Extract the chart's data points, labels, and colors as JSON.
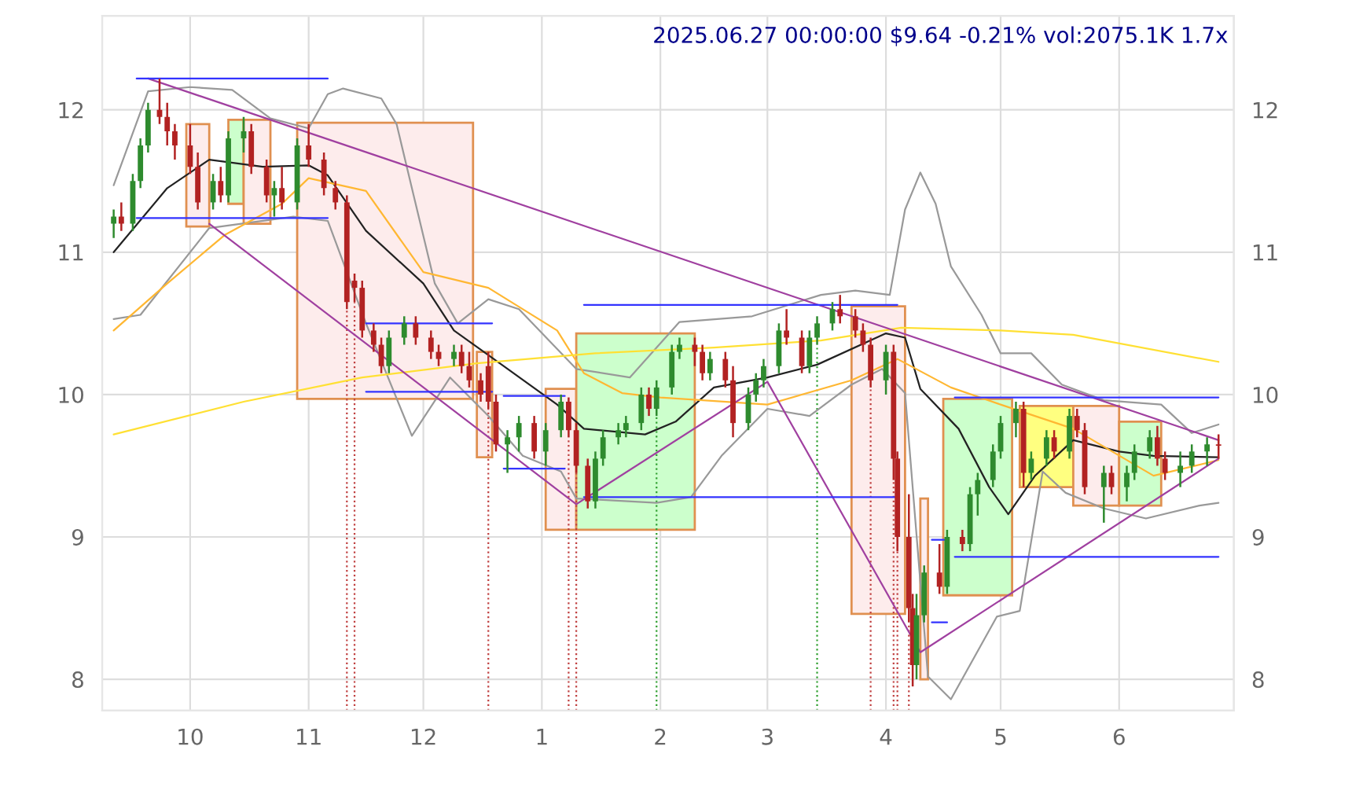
{
  "chart_data": {
    "type": "candlestick",
    "title": "2025.06.27 00:00:00 $9.64 -0.21% vol:2075.1K 1.7x",
    "x": [
      "2024-09-11",
      "2024-09-13",
      "2024-09-16",
      "2024-09-18",
      "2024-09-20",
      "2024-09-23",
      "2024-09-25",
      "2024-09-27",
      "2024-10-01",
      "2024-10-03",
      "2024-10-07",
      "2024-10-09",
      "2024-10-11",
      "2024-10-15",
      "2024-10-17",
      "2024-10-21",
      "2024-10-23",
      "2024-10-25",
      "2024-10-29",
      "2024-11-01",
      "2024-11-05",
      "2024-11-08",
      "2024-11-11",
      "2024-11-13",
      "2024-11-15",
      "2024-11-18",
      "2024-11-20",
      "2024-11-22",
      "2024-11-26",
      "2024-11-29",
      "2024-12-03",
      "2024-12-05",
      "2024-12-09",
      "2024-12-11",
      "2024-12-13",
      "2024-12-16",
      "2024-12-18",
      "2024-12-20",
      "2024-12-23",
      "2024-12-26",
      "2024-12-30",
      "2025-01-02",
      "2025-01-06",
      "2025-01-08",
      "2025-01-10",
      "2025-01-13",
      "2025-01-15",
      "2025-01-17",
      "2025-01-21",
      "2025-01-23",
      "2025-01-27",
      "2025-01-29",
      "2025-01-31",
      "2025-02-04",
      "2025-02-06",
      "2025-02-10",
      "2025-02-12",
      "2025-02-14",
      "2025-02-18",
      "2025-02-20",
      "2025-02-24",
      "2025-02-26",
      "2025-02-28",
      "2025-03-04",
      "2025-03-06",
      "2025-03-10",
      "2025-03-12",
      "2025-03-14",
      "2025-03-18",
      "2025-03-20",
      "2025-03-24",
      "2025-03-26",
      "2025-03-28",
      "2025-04-01",
      "2025-04-03",
      "2025-04-04",
      "2025-04-07",
      "2025-04-08",
      "2025-04-09",
      "2025-04-11",
      "2025-04-15",
      "2025-04-17",
      "2025-04-21",
      "2025-04-23",
      "2025-04-25",
      "2025-04-29",
      "2025-05-01",
      "2025-05-05",
      "2025-05-07",
      "2025-05-09",
      "2025-05-13",
      "2025-05-15",
      "2025-05-19",
      "2025-05-21",
      "2025-05-23",
      "2025-05-28",
      "2025-05-30",
      "2025-06-03",
      "2025-06-05",
      "2025-06-09",
      "2025-06-11",
      "2025-06-13",
      "2025-06-17",
      "2025-06-20",
      "2025-06-24",
      "2025-06-27"
    ],
    "ohlc": [
      [
        11.2,
        11.3,
        11.1,
        11.25
      ],
      [
        11.25,
        11.35,
        11.15,
        11.2
      ],
      [
        11.2,
        11.55,
        11.15,
        11.5
      ],
      [
        11.5,
        11.8,
        11.45,
        11.75
      ],
      [
        11.75,
        12.05,
        11.7,
        12.0
      ],
      [
        12.0,
        12.22,
        11.9,
        11.95
      ],
      [
        11.95,
        12.05,
        11.75,
        11.85
      ],
      [
        11.85,
        11.9,
        11.65,
        11.75
      ],
      [
        11.75,
        11.9,
        11.55,
        11.6
      ],
      [
        11.6,
        11.7,
        11.3,
        11.35
      ],
      [
        11.35,
        11.55,
        11.3,
        11.5
      ],
      [
        11.5,
        11.6,
        11.35,
        11.4
      ],
      [
        11.4,
        11.85,
        11.35,
        11.8
      ],
      [
        11.8,
        11.95,
        11.7,
        11.85
      ],
      [
        11.85,
        11.9,
        11.55,
        11.6
      ],
      [
        11.6,
        11.65,
        11.35,
        11.4
      ],
      [
        11.4,
        11.5,
        11.25,
        11.45
      ],
      [
        11.45,
        11.6,
        11.3,
        11.35
      ],
      [
        11.35,
        11.8,
        11.3,
        11.75
      ],
      [
        11.75,
        11.9,
        11.6,
        11.65
      ],
      [
        11.65,
        11.7,
        11.4,
        11.45
      ],
      [
        11.45,
        11.5,
        11.3,
        11.35
      ],
      [
        11.35,
        11.4,
        10.6,
        10.65
      ],
      [
        10.8,
        10.85,
        10.65,
        10.75
      ],
      [
        10.75,
        10.8,
        10.4,
        10.45
      ],
      [
        10.45,
        10.5,
        10.3,
        10.35
      ],
      [
        10.35,
        10.4,
        10.15,
        10.2
      ],
      [
        10.2,
        10.45,
        10.15,
        10.4
      ],
      [
        10.4,
        10.55,
        10.35,
        10.5
      ],
      [
        10.5,
        10.55,
        10.35,
        10.4
      ],
      [
        10.4,
        10.45,
        10.25,
        10.3
      ],
      [
        10.3,
        10.35,
        10.2,
        10.25
      ],
      [
        10.25,
        10.35,
        10.2,
        10.3
      ],
      [
        10.3,
        10.35,
        10.15,
        10.2
      ],
      [
        10.2,
        10.3,
        10.05,
        10.1
      ],
      [
        10.1,
        10.15,
        9.95,
        10.0
      ],
      [
        10.2,
        10.3,
        9.9,
        9.95
      ],
      [
        9.95,
        10.0,
        9.6,
        9.65
      ],
      [
        9.65,
        9.75,
        9.45,
        9.7
      ],
      [
        9.7,
        9.85,
        9.6,
        9.8
      ],
      [
        9.8,
        9.85,
        9.55,
        9.6
      ],
      [
        9.6,
        9.8,
        9.5,
        9.75
      ],
      [
        9.75,
        10.0,
        9.7,
        9.95
      ],
      [
        9.95,
        9.98,
        9.7,
        9.75
      ],
      [
        9.75,
        9.8,
        9.45,
        9.5
      ],
      [
        9.5,
        9.55,
        9.2,
        9.25
      ],
      [
        9.25,
        9.6,
        9.2,
        9.55
      ],
      [
        9.55,
        9.75,
        9.5,
        9.7
      ],
      [
        9.7,
        9.8,
        9.65,
        9.75
      ],
      [
        9.75,
        9.85,
        9.7,
        9.8
      ],
      [
        9.8,
        10.05,
        9.75,
        10.0
      ],
      [
        10.0,
        10.05,
        9.85,
        9.9
      ],
      [
        9.9,
        10.1,
        9.85,
        10.05
      ],
      [
        10.05,
        10.35,
        10.0,
        10.3
      ],
      [
        10.3,
        10.4,
        10.25,
        10.35
      ],
      [
        10.35,
        10.4,
        10.2,
        10.3
      ],
      [
        10.3,
        10.35,
        10.1,
        10.15
      ],
      [
        10.15,
        10.3,
        10.1,
        10.25
      ],
      [
        10.25,
        10.3,
        10.05,
        10.1
      ],
      [
        10.1,
        10.2,
        9.7,
        9.8
      ],
      [
        9.8,
        10.05,
        9.75,
        10.0
      ],
      [
        10.0,
        10.15,
        9.95,
        10.1
      ],
      [
        10.1,
        10.25,
        10.05,
        10.2
      ],
      [
        10.2,
        10.5,
        10.15,
        10.45
      ],
      [
        10.45,
        10.6,
        10.35,
        10.4
      ],
      [
        10.4,
        10.45,
        10.15,
        10.2
      ],
      [
        10.2,
        10.45,
        10.15,
        10.4
      ],
      [
        10.4,
        10.55,
        10.35,
        10.5
      ],
      [
        10.5,
        10.65,
        10.45,
        10.6
      ],
      [
        10.6,
        10.7,
        10.5,
        10.55
      ],
      [
        10.55,
        10.6,
        10.4,
        10.45
      ],
      [
        10.45,
        10.5,
        10.3,
        10.35
      ],
      [
        10.35,
        10.4,
        10.05,
        10.1
      ],
      [
        10.1,
        10.35,
        10.0,
        10.3
      ],
      [
        10.3,
        10.35,
        9.4,
        9.55
      ],
      [
        9.55,
        9.6,
        8.9,
        9.0
      ],
      [
        9.0,
        9.3,
        8.4,
        8.5
      ],
      [
        8.5,
        8.6,
        7.95,
        8.1
      ],
      [
        8.1,
        8.6,
        8.0,
        8.45
      ],
      [
        8.45,
        8.8,
        8.4,
        8.75
      ],
      [
        8.75,
        8.95,
        8.6,
        8.65
      ],
      [
        8.65,
        9.05,
        8.6,
        9.0
      ],
      [
        9.0,
        9.05,
        8.9,
        8.95
      ],
      [
        8.95,
        9.35,
        8.9,
        9.3
      ],
      [
        9.3,
        9.45,
        9.15,
        9.4
      ],
      [
        9.4,
        9.65,
        9.35,
        9.6
      ],
      [
        9.6,
        9.85,
        9.55,
        9.8
      ],
      [
        9.8,
        9.95,
        9.7,
        9.9
      ],
      [
        9.9,
        9.95,
        9.35,
        9.45
      ],
      [
        9.45,
        9.6,
        9.4,
        9.55
      ],
      [
        9.55,
        9.75,
        9.5,
        9.7
      ],
      [
        9.7,
        9.75,
        9.55,
        9.6
      ],
      [
        9.6,
        9.9,
        9.55,
        9.85
      ],
      [
        9.85,
        9.9,
        9.7,
        9.75
      ],
      [
        9.75,
        9.8,
        9.3,
        9.35
      ],
      [
        9.35,
        9.5,
        9.1,
        9.45
      ],
      [
        9.45,
        9.5,
        9.3,
        9.35
      ],
      [
        9.35,
        9.5,
        9.25,
        9.45
      ],
      [
        9.45,
        9.65,
        9.4,
        9.6
      ],
      [
        9.6,
        9.75,
        9.55,
        9.7
      ],
      [
        9.7,
        9.78,
        9.5,
        9.55
      ],
      [
        9.55,
        9.6,
        9.4,
        9.45
      ],
      [
        9.45,
        9.6,
        9.35,
        9.5
      ],
      [
        9.5,
        9.65,
        9.45,
        9.6
      ],
      [
        9.6,
        9.7,
        9.5,
        9.65
      ],
      [
        9.65,
        9.72,
        9.55,
        9.64
      ]
    ],
    "series": [
      {
        "type": "area",
        "color": "#fdecec",
        "x": [
          "2024-09-30",
          "2024-10-06",
          "2024-10-06",
          "2024-09-30"
        ],
        "values": [
          11.9,
          11.9,
          11.18,
          11.18
        ]
      },
      {
        "type": "area",
        "color": "#ccffcc",
        "x": [
          "2024-10-11",
          "2024-10-15",
          "2024-10-15",
          "2024-10-11"
        ],
        "values": [
          11.93,
          11.93,
          11.34,
          11.34
        ]
      },
      {
        "type": "area",
        "color": "#fdecec",
        "x": [
          "2024-10-15",
          "2024-10-22",
          "2024-10-22",
          "2024-10-15"
        ],
        "values": [
          11.93,
          11.93,
          11.2,
          11.2
        ]
      },
      {
        "type": "area",
        "color": "#fdecec",
        "x": [
          "2024-10-29",
          "2024-12-14",
          "2024-12-14",
          "2024-10-29"
        ],
        "values": [
          11.91,
          11.91,
          9.97,
          9.97
        ]
      },
      {
        "type": "area",
        "color": "#fdecec",
        "x": [
          "2024-12-15",
          "2024-12-19",
          "2024-12-19",
          "2024-12-15"
        ],
        "values": [
          10.3,
          10.3,
          9.56,
          9.56
        ]
      },
      {
        "type": "area",
        "color": "#fdecec",
        "x": [
          "2025-01-02",
          "2025-01-10",
          "2025-01-10",
          "2025-01-02"
        ],
        "values": [
          10.04,
          10.04,
          9.05,
          9.05
        ]
      },
      {
        "type": "area",
        "color": "#ccffcc",
        "x": [
          "2025-01-10",
          "2025-02-10",
          "2025-02-10",
          "2025-01-10"
        ],
        "values": [
          10.43,
          10.43,
          9.05,
          9.05
        ]
      },
      {
        "type": "area",
        "color": "#fdecec",
        "x": [
          "2025-03-23",
          "2025-04-06",
          "2025-04-06",
          "2025-03-23"
        ],
        "values": [
          10.62,
          10.62,
          8.46,
          8.46
        ]
      },
      {
        "type": "area",
        "color": "#fdecec",
        "x": [
          "2025-04-10",
          "2025-04-12",
          "2025-04-12",
          "2025-04-10"
        ],
        "values": [
          9.27,
          9.27,
          8.0,
          8.0
        ]
      },
      {
        "type": "area",
        "color": "#ccffcc",
        "x": [
          "2025-04-16",
          "2025-05-04",
          "2025-05-04",
          "2025-04-16"
        ],
        "values": [
          9.97,
          9.97,
          8.59,
          8.59
        ]
      },
      {
        "type": "area",
        "color": "#ffff80",
        "x": [
          "2025-05-06",
          "2025-05-20",
          "2025-05-20",
          "2025-05-06"
        ],
        "values": [
          9.92,
          9.92,
          9.35,
          9.35
        ]
      },
      {
        "type": "area",
        "color": "#fdecec",
        "x": [
          "2025-05-20",
          "2025-06-01",
          "2025-06-01",
          "2025-05-20"
        ],
        "values": [
          9.92,
          9.92,
          9.22,
          9.22
        ]
      },
      {
        "type": "area",
        "color": "#ccffcc",
        "x": [
          "2025-06-01",
          "2025-06-12",
          "2025-06-12",
          "2025-06-01"
        ],
        "values": [
          9.81,
          9.81,
          9.22,
          9.22
        ]
      },
      {
        "type": "line",
        "color": "#999999",
        "x": [
          "2024-09-11",
          "2024-09-20",
          "2024-10-01",
          "2024-10-12",
          "2024-10-22",
          "2024-11-01",
          "2024-11-06",
          "2024-11-10",
          "2024-11-20",
          "2024-11-24",
          "2024-11-28",
          "2024-12-04",
          "2024-12-10",
          "2024-12-18",
          "2024-12-26",
          "2025-01-10",
          "2025-01-24",
          "2025-02-06",
          "2025-02-25",
          "2025-03-15",
          "2025-03-24",
          "2025-04-02",
          "2025-04-06",
          "2025-04-10",
          "2025-04-14",
          "2025-04-18",
          "2025-04-26",
          "2025-05-01",
          "2025-05-09",
          "2025-05-17",
          "2025-05-28",
          "2025-06-12",
          "2025-06-20",
          "2025-06-27"
        ],
        "values": [
          11.47,
          12.13,
          12.16,
          12.14,
          11.94,
          11.87,
          12.11,
          12.15,
          12.08,
          11.9,
          11.45,
          10.78,
          10.5,
          10.67,
          10.6,
          10.18,
          10.12,
          10.51,
          10.55,
          10.7,
          10.73,
          10.7,
          11.3,
          11.56,
          11.34,
          10.9,
          10.56,
          10.29,
          10.29,
          10.07,
          9.96,
          9.93,
          9.73,
          9.79
        ]
      },
      {
        "type": "line",
        "color": "#999999",
        "x": [
          "2024-09-11",
          "2024-09-18",
          "2024-10-06",
          "2024-10-28",
          "2024-11-06",
          "2024-11-16",
          "2024-11-28",
          "2024-12-08",
          "2024-12-18",
          "2024-12-27",
          "2025-01-06",
          "2025-01-10",
          "2025-01-31",
          "2025-02-09",
          "2025-02-17",
          "2025-03-01",
          "2025-03-12",
          "2025-03-23",
          "2025-03-31",
          "2025-04-06",
          "2025-04-12",
          "2025-04-18",
          "2025-04-30",
          "2025-05-06",
          "2025-05-12",
          "2025-05-18",
          "2025-05-28",
          "2025-06-08",
          "2025-06-22",
          "2025-06-27"
        ],
        "values": [
          10.53,
          10.56,
          11.17,
          11.25,
          11.22,
          10.5,
          9.71,
          10.12,
          9.85,
          9.57,
          9.46,
          9.27,
          9.24,
          9.28,
          9.57,
          9.9,
          9.85,
          10.07,
          10.18,
          10.01,
          8.02,
          7.86,
          8.44,
          8.48,
          9.46,
          9.31,
          9.2,
          9.13,
          9.22,
          9.24
        ]
      },
      {
        "type": "line",
        "color": "#222222",
        "x": [
          "2024-09-11",
          "2024-09-25",
          "2024-10-06",
          "2024-10-20",
          "2024-11-01",
          "2024-11-06",
          "2024-11-16",
          "2024-12-01",
          "2024-12-09",
          "2024-12-22",
          "2025-01-05",
          "2025-01-12",
          "2025-01-28",
          "2025-02-05",
          "2025-02-15",
          "2025-03-01",
          "2025-03-14",
          "2025-04-01",
          "2025-04-06",
          "2025-04-10",
          "2025-04-20",
          "2025-04-28",
          "2025-05-03",
          "2025-05-10",
          "2025-05-20",
          "2025-06-01",
          "2025-06-10",
          "2025-06-27"
        ],
        "values": [
          11.0,
          11.45,
          11.65,
          11.6,
          11.61,
          11.54,
          11.15,
          10.78,
          10.45,
          10.2,
          9.93,
          9.76,
          9.72,
          9.81,
          10.05,
          10.12,
          10.21,
          10.43,
          10.4,
          10.04,
          9.76,
          9.35,
          9.16,
          9.43,
          9.68,
          9.6,
          9.57,
          9.56
        ]
      },
      {
        "type": "line",
        "color": "#ffb732",
        "x": [
          "2024-09-11",
          "2024-09-25",
          "2024-10-10",
          "2024-10-25",
          "2024-11-01",
          "2024-11-16",
          "2024-12-01",
          "2024-12-18",
          "2025-01-05",
          "2025-01-12",
          "2025-01-22",
          "2025-02-01",
          "2025-03-01",
          "2025-03-23",
          "2025-04-04",
          "2025-04-18",
          "2025-05-01",
          "2025-05-20",
          "2025-06-10",
          "2025-06-27"
        ],
        "values": [
          10.45,
          10.78,
          11.12,
          11.34,
          11.52,
          11.43,
          10.86,
          10.75,
          10.45,
          10.15,
          10.01,
          9.98,
          9.93,
          10.1,
          10.25,
          10.05,
          9.93,
          9.76,
          9.43,
          9.54
        ]
      },
      {
        "type": "line",
        "color": "#ffe033",
        "x": [
          "2024-09-11",
          "2024-10-15",
          "2024-11-15",
          "2024-12-15",
          "2025-01-15",
          "2025-02-15",
          "2025-03-15",
          "2025-04-05",
          "2025-05-01",
          "2025-05-20",
          "2025-06-27"
        ],
        "values": [
          9.72,
          9.95,
          10.12,
          10.22,
          10.29,
          10.33,
          10.38,
          10.47,
          10.45,
          10.42,
          10.23
        ]
      },
      {
        "type": "line",
        "color": "#a040a0",
        "x": [
          "2024-09-20",
          "2025-06-27"
        ],
        "values": [
          12.22,
          9.68
        ]
      },
      {
        "type": "line",
        "color": "#a040a0",
        "x": [
          "2024-10-06",
          "2025-01-10",
          "2025-03-01",
          "2025-04-10",
          "2025-06-27"
        ],
        "values": [
          11.2,
          9.23,
          10.09,
          8.19,
          9.55
        ]
      },
      {
        "type": "line",
        "color": "#3333ff",
        "x": [
          "2024-09-17",
          "2024-11-06"
        ],
        "values": [
          12.22,
          12.22
        ]
      },
      {
        "type": "line",
        "color": "#3333ff",
        "x": [
          "2024-09-17",
          "2024-11-06"
        ],
        "values": [
          11.24,
          11.24
        ]
      },
      {
        "type": "line",
        "color": "#3333ff",
        "x": [
          "2024-11-16",
          "2024-12-19"
        ],
        "values": [
          10.5,
          10.5
        ]
      },
      {
        "type": "line",
        "color": "#3333ff",
        "x": [
          "2024-11-16",
          "2024-12-19"
        ],
        "values": [
          10.02,
          10.02
        ]
      },
      {
        "type": "line",
        "color": "#3333ff",
        "x": [
          "2024-12-22",
          "2025-01-07"
        ],
        "values": [
          9.99,
          9.99
        ]
      },
      {
        "type": "line",
        "color": "#3333ff",
        "x": [
          "2024-12-22",
          "2025-01-07"
        ],
        "values": [
          9.48,
          9.48
        ]
      },
      {
        "type": "line",
        "color": "#3333ff",
        "x": [
          "2025-01-12",
          "2025-04-04"
        ],
        "values": [
          10.63,
          10.63
        ]
      },
      {
        "type": "line",
        "color": "#3333ff",
        "x": [
          "2025-01-12",
          "2025-04-04"
        ],
        "values": [
          9.28,
          9.28
        ]
      },
      {
        "type": "line",
        "color": "#3333ff",
        "x": [
          "2025-04-13",
          "2025-04-17"
        ],
        "values": [
          8.98,
          8.98
        ]
      },
      {
        "type": "line",
        "color": "#3333ff",
        "x": [
          "2025-04-13",
          "2025-04-17"
        ],
        "values": [
          8.4,
          8.4
        ]
      },
      {
        "type": "line",
        "color": "#3333ff",
        "x": [
          "2025-04-19",
          "2025-06-27"
        ],
        "values": [
          9.98,
          9.98
        ]
      },
      {
        "type": "line",
        "color": "#3333ff",
        "x": [
          "2025-04-19",
          "2025-06-27"
        ],
        "values": [
          8.86,
          8.86
        ]
      }
    ],
    "ref_lines": [
      {
        "axis": "x",
        "value": "2024-11-11",
        "color": "#c04040",
        "line_style": "dotted"
      },
      {
        "axis": "x",
        "value": "2024-11-13",
        "color": "#c04040",
        "line_style": "dotted"
      },
      {
        "axis": "x",
        "value": "2024-12-18",
        "color": "#c04040",
        "line_style": "dotted"
      },
      {
        "axis": "x",
        "value": "2025-01-08",
        "color": "#c04040",
        "line_style": "dotted"
      },
      {
        "axis": "x",
        "value": "2025-01-10",
        "color": "#c04040",
        "line_style": "dotted"
      },
      {
        "axis": "x",
        "value": "2025-01-31",
        "color": "#30a030",
        "line_style": "dotted"
      },
      {
        "axis": "x",
        "value": "2025-03-14",
        "color": "#30a030",
        "line_style": "dotted"
      },
      {
        "axis": "x",
        "value": "2025-03-28",
        "color": "#c04040",
        "line_style": "dotted"
      },
      {
        "axis": "x",
        "value": "2025-04-03",
        "color": "#c04040",
        "line_style": "dotted"
      },
      {
        "axis": "x",
        "value": "2025-04-04",
        "color": "#c04040",
        "line_style": "dotted"
      },
      {
        "axis": "x",
        "value": "2025-04-07",
        "color": "#c04040",
        "line_style": "dotted"
      }
    ],
    "xlim": [
      "2024-09-08",
      "2025-07-01"
    ],
    "xticks": [
      {
        "value": "2024-10-01",
        "label": "10"
      },
      {
        "value": "2024-11-01",
        "label": "11"
      },
      {
        "value": "2024-12-01",
        "label": "12"
      },
      {
        "value": "2025-01-01",
        "label": "1"
      },
      {
        "value": "2025-02-01",
        "label": "2"
      },
      {
        "value": "2025-03-01",
        "label": "3"
      },
      {
        "value": "2025-04-01",
        "label": "4"
      },
      {
        "value": "2025-05-01",
        "label": "5"
      },
      {
        "value": "2025-06-01",
        "label": "6"
      }
    ],
    "ylim": [
      7.78,
      12.66
    ],
    "yticks": [
      8,
      9,
      10,
      11,
      12
    ],
    "y2lim": [
      7.78,
      12.66
    ],
    "y2ticks": [
      8,
      9,
      10,
      11,
      12
    ],
    "grid": true
  }
}
